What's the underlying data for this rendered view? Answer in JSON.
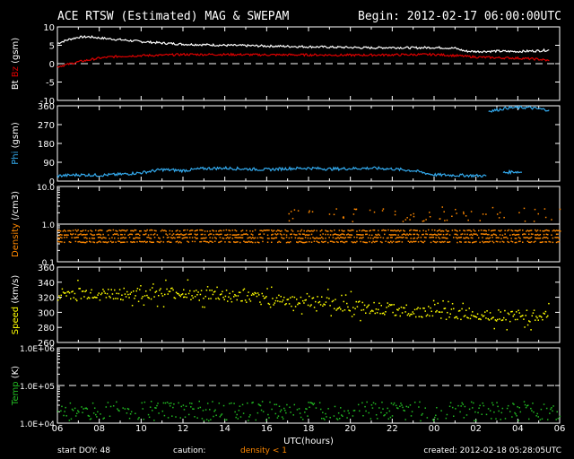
{
  "header": {
    "title": "ACE RTSW (Estimated) MAG & SWEPAM",
    "begin": "Begin: 2012-02-17 06:00:00UTC"
  },
  "footer": {
    "start_doy": "start DOY:  48",
    "caution": "caution:",
    "density_note": "density < 1",
    "created": "created: 2012-02-18 05:28:05UTC"
  },
  "colors": {
    "background": "#000000",
    "axes": "#ffffff",
    "bt": "#ffffff",
    "bz": "#dd0000",
    "phi": "#33aaee",
    "density": "#ff8800",
    "speed": "#ffff00",
    "temp": "#22bb22",
    "caution_note": "#ff8800"
  },
  "chart_data": {
    "type": "line",
    "x_axis": {
      "label": "UTC(hours)",
      "ticks": [
        "06",
        "08",
        "10",
        "12",
        "14",
        "16",
        "18",
        "20",
        "22",
        "00",
        "02",
        "04",
        "06"
      ],
      "range_hours": [
        0,
        24
      ]
    },
    "panels": [
      {
        "id": "mag",
        "ylabel": "Bt  Bz  (gsm)",
        "ylabel_parts": [
          {
            "text": "Bt",
            "color": "#ffffff"
          },
          {
            "text": "Bz",
            "color": "#dd0000"
          },
          {
            "text": "(gsm)",
            "color": "#ffffff"
          }
        ],
        "ylim": [
          -10,
          10
        ],
        "yticks": [
          10,
          5,
          0,
          -5,
          -10
        ],
        "ytick_labels": [
          "10",
          "5",
          "0",
          "-5",
          "-10"
        ],
        "ref_lines": [
          0
        ],
        "series": [
          {
            "name": "Bt",
            "style": "line",
            "color": "#ffffff",
            "x": [
              0,
              0.5,
              1,
              1.5,
              2,
              3,
              4,
              5,
              6,
              8,
              10,
              12,
              14,
              15,
              16,
              17,
              18,
              19,
              19.5,
              20,
              21,
              22,
              23,
              23.5
            ],
            "y": [
              5.5,
              6.5,
              7.2,
              7.3,
              7.0,
              6.5,
              6.0,
              5.6,
              5.3,
              5.0,
              4.8,
              4.6,
              4.4,
              4.3,
              4.4,
              4.3,
              4.4,
              4.2,
              3.4,
              3.3,
              3.4,
              3.3,
              3.5,
              3.7
            ]
          },
          {
            "name": "Bz",
            "style": "line",
            "color": "#dd0000",
            "x": [
              0,
              0.5,
              1,
              1.5,
              2,
              2.5,
              3,
              4,
              5,
              6,
              8,
              10,
              12,
              14,
              16,
              18,
              19,
              20,
              21,
              22,
              23,
              23.5
            ],
            "y": [
              -0.8,
              -0.2,
              0.5,
              1.0,
              1.5,
              1.8,
              2.0,
              2.2,
              2.3,
              2.5,
              2.5,
              2.4,
              2.4,
              2.3,
              2.4,
              2.5,
              2.2,
              1.8,
              1.6,
              1.5,
              1.2,
              0.8
            ]
          }
        ]
      },
      {
        "id": "phi",
        "ylabel": "Phi (gsm)",
        "ylabel_parts": [
          {
            "text": "Phi",
            "color": "#33aaee"
          },
          {
            "text": "(gsm)",
            "color": "#ffffff"
          }
        ],
        "ylim": [
          0,
          360
        ],
        "yticks": [
          360,
          270,
          180,
          90,
          0
        ],
        "ytick_labels": [
          "360",
          "270",
          "180",
          "90",
          "0"
        ],
        "ref_lines": [],
        "series": [
          {
            "name": "Phi",
            "style": "line",
            "color": "#33aaee",
            "segments": [
              {
                "x": [
                  0,
                  1,
                  2,
                  3,
                  4,
                  5,
                  6,
                  7,
                  8,
                  9,
                  10,
                  11,
                  12,
                  13,
                  14,
                  15,
                  16,
                  17,
                  18,
                  19,
                  20.5
                ],
                "y": [
                  25,
                  30,
                  28,
                  32,
                  40,
                  55,
                  50,
                  60,
                  62,
                  58,
                  55,
                  60,
                  62,
                  58,
                  60,
                  62,
                  58,
                  50,
                  30,
                  28,
                  25
                ]
              },
              {
                "x": [
                  21.3,
                  21.8,
                  22.2
                ],
                "y": [
                  40,
                  45,
                  42
                ]
              },
              {
                "x": [
                  20.6,
                  21,
                  21.5,
                  22.5,
                  23,
                  23.5
                ],
                "y": [
                  335,
                  340,
                  350,
                  352,
                  345,
                  340
                ]
              }
            ]
          }
        ]
      },
      {
        "id": "density",
        "ylabel": "Density (/cm3)",
        "ylabel_parts": [
          {
            "text": "Density",
            "color": "#ff8800"
          },
          {
            "text": "(/cm3)",
            "color": "#ffffff"
          }
        ],
        "scale": "log",
        "ylim": [
          0.1,
          10
        ],
        "yticks": [
          10,
          1,
          0.1
        ],
        "ytick_labels": [
          "10.0",
          "1.0",
          "0.1"
        ],
        "ref_lines": [
          1
        ],
        "series": [
          {
            "name": "Density",
            "style": "scatter",
            "color": "#ff8800",
            "rows": [
              0.7,
              0.55,
              0.45,
              0.35
            ],
            "x_range": [
              0,
              24
            ],
            "scatter_band": {
              "x_range": [
                11,
                24
              ],
              "y_range": [
                1.2,
                3.0
              ]
            }
          }
        ]
      },
      {
        "id": "speed",
        "ylabel": "Speed (km/s)",
        "ylabel_parts": [
          {
            "text": "Speed",
            "color": "#ffff00"
          },
          {
            "text": "(km/s)",
            "color": "#ffffff"
          }
        ],
        "ylim": [
          260,
          360
        ],
        "yticks": [
          360,
          340,
          320,
          300,
          280,
          260
        ],
        "ytick_labels": [
          "360",
          "340",
          "320",
          "300",
          "280",
          "260"
        ],
        "ref_lines": [],
        "series": [
          {
            "name": "Speed",
            "style": "scatter",
            "color": "#ffff00",
            "trend": {
              "x": [
                0,
                3,
                6,
                9,
                12,
                15,
                18,
                21,
                23.5
              ],
              "y": [
                325,
                325,
                326,
                320,
                315,
                307,
                300,
                297,
                295
              ]
            },
            "spread": 8
          }
        ]
      },
      {
        "id": "temp",
        "ylabel": "Temp (K)",
        "ylabel_parts": [
          {
            "text": "Temp",
            "color": "#22bb22"
          },
          {
            "text": "(K)",
            "color": "#ffffff"
          }
        ],
        "scale": "log",
        "ylim": [
          10000,
          1000000
        ],
        "yticks": [
          1000000,
          100000,
          10000
        ],
        "ytick_labels": [
          "1.0E+06",
          "1.0E+05",
          "1.0E+04"
        ],
        "ref_lines": [
          100000
        ],
        "series": [
          {
            "name": "Temp",
            "style": "scatter",
            "color": "#22bb22",
            "y_range": [
              12000,
              40000
            ],
            "x_range": [
              0,
              24
            ]
          }
        ]
      }
    ]
  }
}
